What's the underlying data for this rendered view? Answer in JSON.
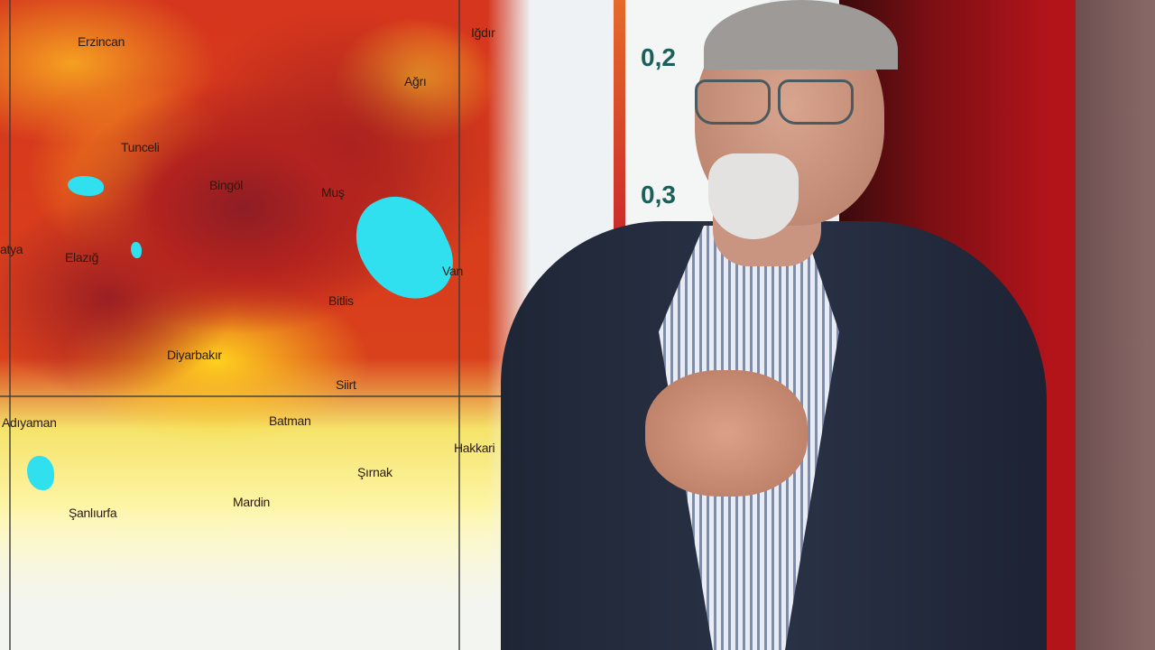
{
  "map": {
    "cities": [
      "Erzincan",
      "Iğdır",
      "Ağrı",
      "Tunceli",
      "Bingöl",
      "Muş",
      "Elazığ",
      "Van",
      "Bitlis",
      "Diyarbakır",
      "Siirt",
      "Adıyaman",
      "Batman",
      "Hakkari",
      "Şırnak",
      "Mardin",
      "Şanlıurfa",
      "atya"
    ],
    "colors": {
      "high": "#8e1d24",
      "mid": "#d5361d",
      "low": "#ffd11f",
      "lake": "#30e0ee"
    }
  },
  "scale": {
    "labels": [
      "0,2",
      "0,3"
    ],
    "bar_color": "#c8202a"
  },
  "studio": {
    "background": "#7d0f14"
  }
}
